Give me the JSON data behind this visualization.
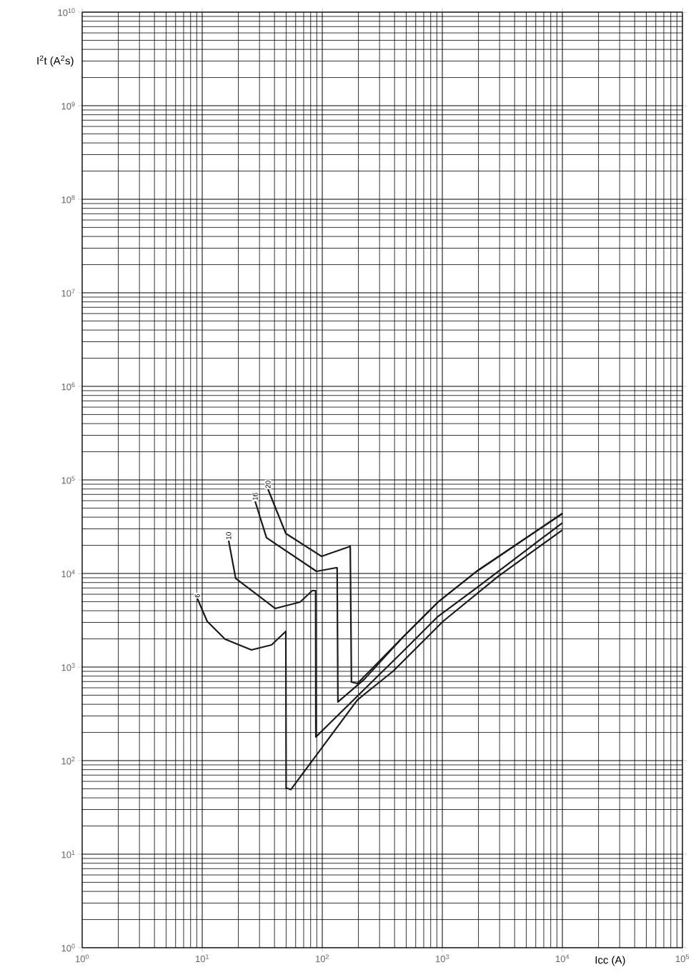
{
  "chart_data": {
    "type": "line",
    "xlabel": "Icc (A)",
    "ylabel": "I$^{2}$t (A$^{2}$s)",
    "log": "xy",
    "grid": true,
    "marker": "none",
    "line_style": "solid",
    "xlim": [
      1,
      100000
    ],
    "ylim": [
      1,
      10000000000
    ],
    "xticks": [
      {
        "value": 1,
        "label": "10$^{0}$"
      },
      {
        "value": 10,
        "label": "10$^{1}$"
      },
      {
        "value": 100,
        "label": "10$^{2}$"
      },
      {
        "value": 1000,
        "label": "10$^{3}$"
      },
      {
        "value": 10000,
        "label": "10$^{4}$"
      },
      {
        "value": 100000,
        "label": "10$^{5}$"
      }
    ],
    "yticks": [
      {
        "value": 1,
        "label": "10$^{0}$"
      },
      {
        "value": 10,
        "label": "10$^{1}$"
      },
      {
        "value": 100,
        "label": "10$^{2}$"
      },
      {
        "value": 1000,
        "label": "10$^{3}$"
      },
      {
        "value": 10000,
        "label": "10$^{4}$"
      },
      {
        "value": 100000,
        "label": "10$^{5}$"
      },
      {
        "value": 1000000,
        "label": "10$^{6}$"
      },
      {
        "value": 10000000,
        "label": "10$^{7}$"
      },
      {
        "value": 100000000,
        "label": "10$^{8}$"
      },
      {
        "value": 1000000000,
        "label": "10$^{9}$"
      },
      {
        "value": 10000000000,
        "label": "10$^{10}$"
      }
    ],
    "series": [
      {
        "name": "6",
        "color": "#1a1a1a",
        "x": [
          9.1,
          11,
          15.5,
          25.7,
          37.8,
          49.7,
          50,
          54.7,
          196,
          388,
          1014,
          2913,
          10000
        ],
        "values": [
          5400,
          3080,
          1985,
          1525,
          1725,
          2410,
          51,
          49,
          445,
          900,
          3080,
          9310,
          29200
        ]
      },
      {
        "name": "10",
        "color": "#1a1a1a",
        "x": [
          16.6,
          19,
          40.5,
          65.4,
          82.5,
          88,
          88.4,
          464,
          921,
          1930,
          10000
        ],
        "values": [
          22450,
          8850,
          4230,
          4950,
          6560,
          6560,
          179,
          1446,
          3480,
          7030,
          34800
        ]
      },
      {
        "name": "16",
        "color": "#1a1a1a",
        "x": [
          27.6,
          34.3,
          89.6,
          130,
          133,
          135,
          224,
          464,
          921,
          1930,
          10000
        ],
        "values": [
          59000,
          24100,
          10540,
          11500,
          11500,
          423,
          740,
          2056,
          4950,
          10540,
          43750
        ]
      },
      {
        "name": "20",
        "color": "#1a1a1a",
        "x": [
          35.3,
          49.7,
          98.6,
          171,
          175,
          196,
          464,
          921,
          1930,
          10000
        ],
        "values": [
          79600,
          26750,
          15250,
          19500,
          692,
          667,
          2056,
          4950,
          10540,
          43750
        ]
      }
    ]
  }
}
